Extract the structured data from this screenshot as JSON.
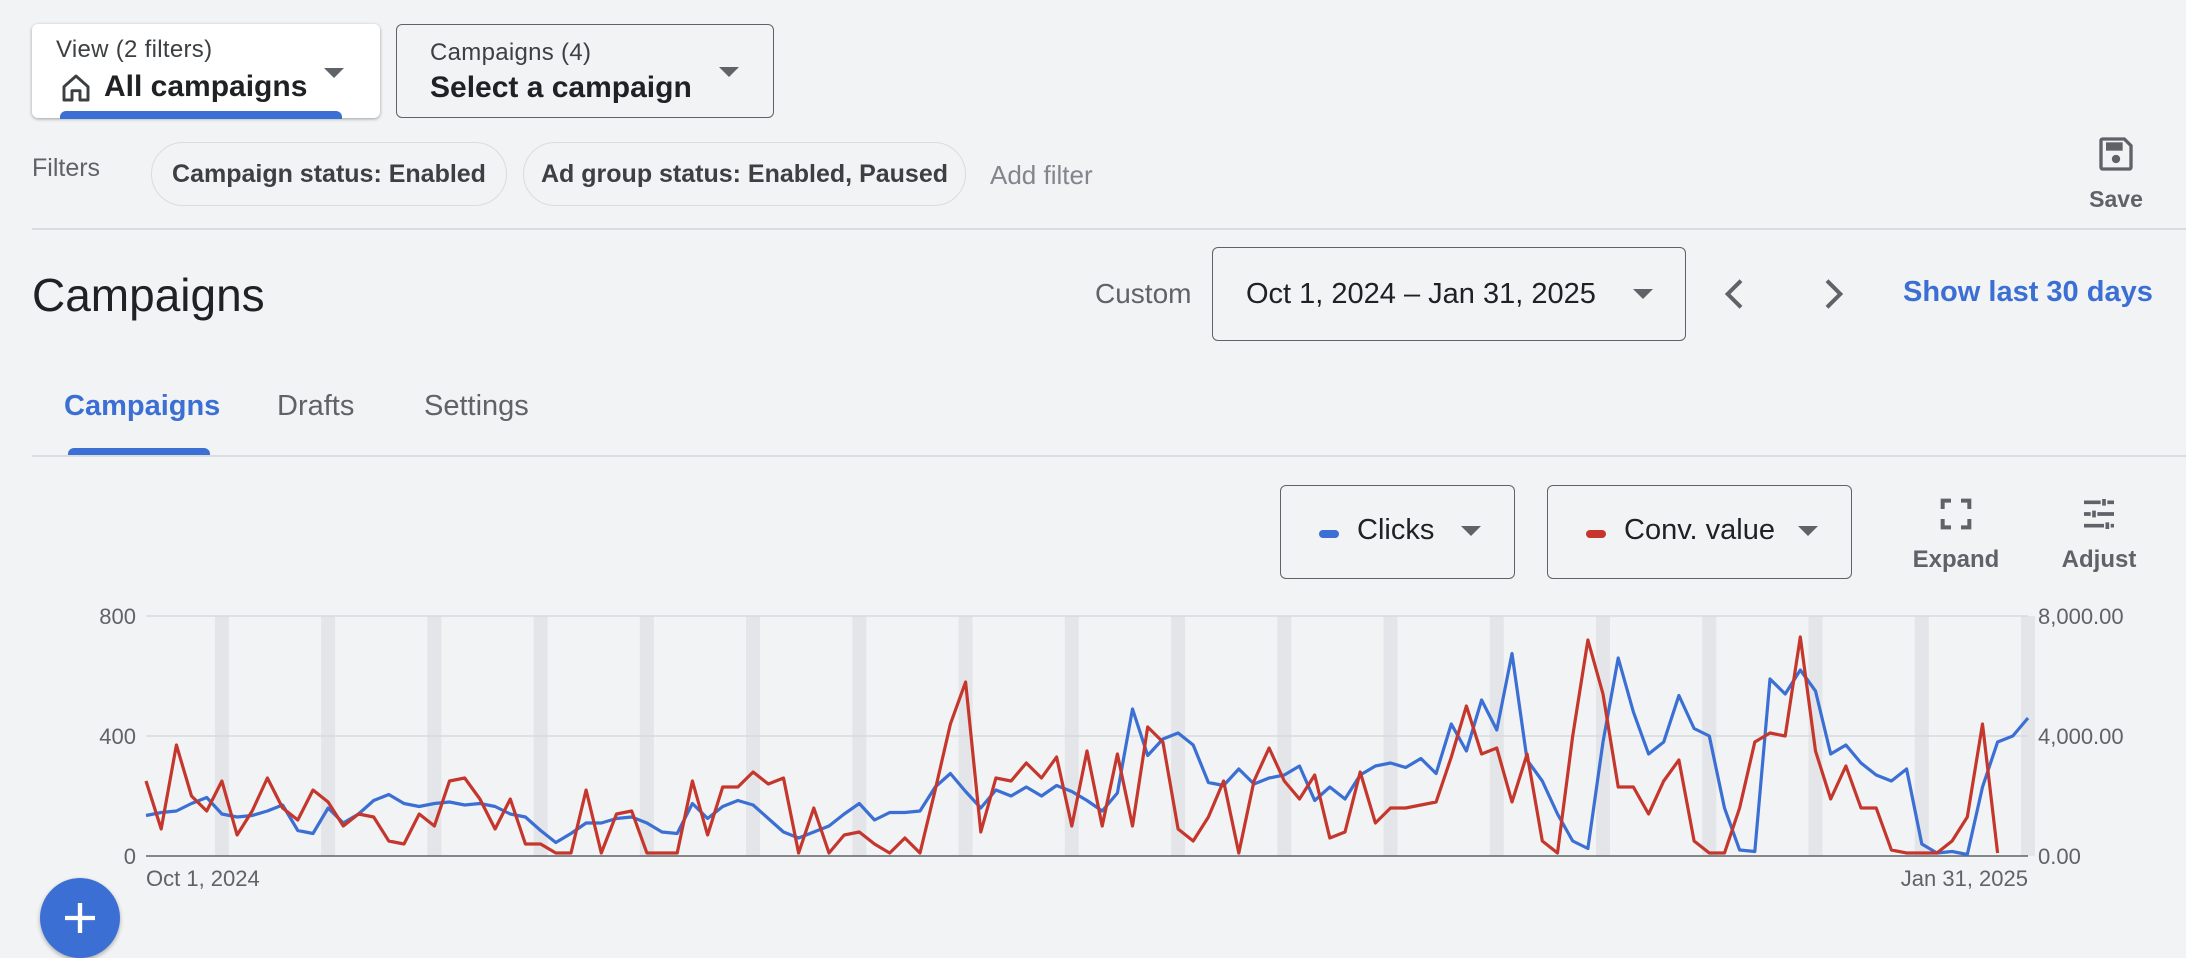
{
  "view_selector": {
    "small_label": "View (2 filters)",
    "value": "All campaigns"
  },
  "campaign_selector": {
    "small_label": "Campaigns (4)",
    "value": "Select a campaign"
  },
  "filters": {
    "label": "Filters",
    "chips": [
      "Campaign status: Enabled",
      "Ad group status: Enabled, Paused"
    ],
    "add_filter": "Add filter"
  },
  "save": {
    "label": "Save"
  },
  "header": {
    "title": "Campaigns",
    "date_mode": "Custom",
    "date_range": "Oct 1, 2024 – Jan 31, 2025",
    "show_last": "Show last 30 days"
  },
  "tabs": [
    {
      "label": "Campaigns",
      "active": true
    },
    {
      "label": "Drafts",
      "active": false
    },
    {
      "label": "Settings",
      "active": false
    }
  ],
  "metrics": [
    {
      "label": "Clicks",
      "color": "#3b6fd4"
    },
    {
      "label": "Conv. value",
      "color": "#c5372c"
    }
  ],
  "tools": {
    "expand": "Expand",
    "adjust": "Adjust"
  },
  "colors": {
    "accent": "#3b6fd4",
    "clicks": "#3b6fd4",
    "conv_value": "#c5372c",
    "text_secondary": "#5f6368"
  },
  "chart_data": {
    "type": "line",
    "x_start_label": "Oct 1, 2024",
    "x_end_label": "Jan 31, 2025",
    "left_axis": {
      "ticks": [
        "0",
        "400",
        "800"
      ],
      "range": [
        0,
        800
      ]
    },
    "right_axis": {
      "ticks": [
        "0.00",
        "4,000.00",
        "8,000.00"
      ],
      "range": [
        0,
        8000
      ]
    },
    "series": [
      {
        "name": "Clicks",
        "axis": "left",
        "color": "#3b6fd4",
        "values": [
          135,
          145,
          150,
          175,
          195,
          140,
          130,
          135,
          150,
          170,
          85,
          75,
          160,
          110,
          140,
          185,
          205,
          175,
          165,
          175,
          180,
          170,
          175,
          165,
          140,
          130,
          85,
          45,
          75,
          110,
          110,
          125,
          130,
          110,
          80,
          75,
          175,
          125,
          165,
          185,
          170,
          125,
          80,
          60,
          80,
          100,
          140,
          175,
          120,
          145,
          145,
          150,
          230,
          275,
          215,
          160,
          220,
          200,
          230,
          200,
          235,
          215,
          185,
          150,
          210,
          490,
          335,
          390,
          410,
          370,
          245,
          235,
          290,
          240,
          260,
          270,
          300,
          185,
          230,
          190,
          270,
          300,
          310,
          295,
          325,
          275,
          440,
          350,
          520,
          420,
          675,
          320,
          250,
          140,
          50,
          25,
          380,
          660,
          480,
          340,
          380,
          535,
          425,
          400,
          160,
          20,
          15,
          590,
          540,
          620,
          550,
          340,
          370,
          310,
          270,
          250,
          290,
          40,
          10,
          15,
          5,
          230,
          380,
          400,
          460
        ]
      },
      {
        "name": "Conv. value",
        "axis": "right",
        "color": "#c5372c",
        "values": [
          2500,
          900,
          3700,
          2000,
          1500,
          2500,
          700,
          1500,
          2600,
          1600,
          1200,
          2200,
          1800,
          1000,
          1400,
          1300,
          500,
          400,
          1400,
          1000,
          2500,
          2600,
          1900,
          900,
          1900,
          400,
          400,
          100,
          100,
          2200,
          100,
          1400,
          1500,
          100,
          100,
          100,
          2500,
          700,
          2300,
          2300,
          2800,
          2400,
          2600,
          100,
          1600,
          100,
          700,
          800,
          400,
          100,
          600,
          100,
          2200,
          4400,
          5800,
          800,
          2600,
          2500,
          3100,
          2600,
          3300,
          1000,
          3500,
          1000,
          3400,
          1000,
          4300,
          3800,
          900,
          500,
          1300,
          2500,
          100,
          2500,
          3600,
          2500,
          1900,
          2700,
          600,
          800,
          2800,
          1100,
          1600,
          1600,
          1700,
          1800,
          3300,
          5000,
          3400,
          3600,
          1800,
          3400,
          500,
          100,
          4000,
          7200,
          5400,
          2300,
          2300,
          1400,
          2500,
          3200,
          500,
          100,
          100,
          1600,
          3800,
          4100,
          4000,
          7300,
          3500,
          1900,
          3000,
          1600,
          1600,
          200,
          100,
          100,
          100,
          500,
          1300,
          4400,
          100
        ]
      }
    ],
    "grid": true
  }
}
